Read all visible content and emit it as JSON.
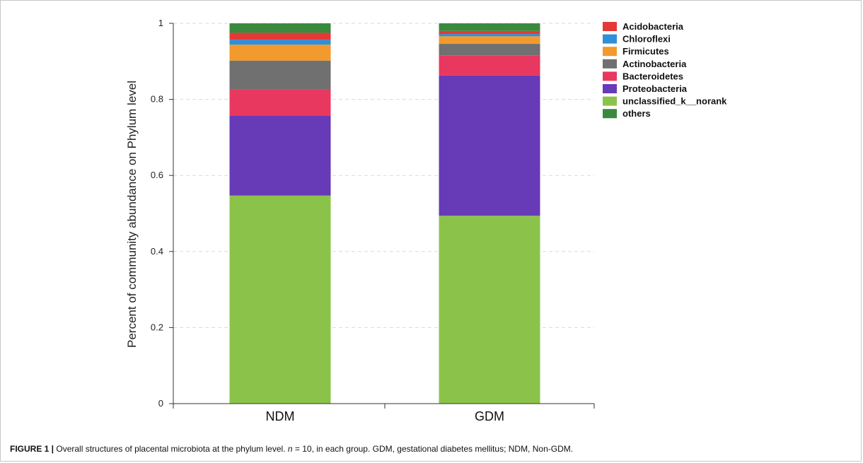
{
  "chart_data": {
    "type": "bar",
    "stacked": true,
    "categories": [
      "NDM",
      "GDM"
    ],
    "ylabel": "Percent of community abundance on Phylum level",
    "xlabel": "",
    "ylim": [
      0,
      1
    ],
    "yticks": [
      "0",
      "0.2",
      "0.4",
      "0.6",
      "0.8",
      "1"
    ],
    "grid": true,
    "legend_position": "top-right",
    "series": [
      {
        "name": "unclassified_k__norank",
        "color": "#8bc34a",
        "values": [
          0.547,
          0.494
        ]
      },
      {
        "name": "Proteobacteria",
        "color": "#673ab7",
        "values": [
          0.211,
          0.369
        ]
      },
      {
        "name": "Bacteroidetes",
        "color": "#e8385f",
        "values": [
          0.069,
          0.053
        ]
      },
      {
        "name": "Actinobacteria",
        "color": "#707070",
        "values": [
          0.075,
          0.03
        ]
      },
      {
        "name": "Firmicutes",
        "color": "#f29a2e",
        "values": [
          0.042,
          0.02
        ]
      },
      {
        "name": "Chloroflexi",
        "color": "#2f8fd8",
        "values": [
          0.013,
          0.006
        ]
      },
      {
        "name": "Acidobacteria",
        "color": "#e53935",
        "values": [
          0.018,
          0.008
        ]
      },
      {
        "name": "others",
        "color": "#3a8a3e",
        "values": [
          0.025,
          0.02
        ]
      }
    ],
    "legend_order": [
      "Acidobacteria",
      "Chloroflexi",
      "Firmicutes",
      "Actinobacteria",
      "Bacteroidetes",
      "Proteobacteria",
      "unclassified_k__norank",
      "others"
    ]
  },
  "caption": {
    "label": "FIGURE 1 |",
    "text_before_n": " Overall structures of placental microbiota at the phylum level. ",
    "n_symbol": "n",
    "text_after_n": " = 10, in each group. GDM, gestational diabetes mellitus; NDM, Non-GDM."
  }
}
